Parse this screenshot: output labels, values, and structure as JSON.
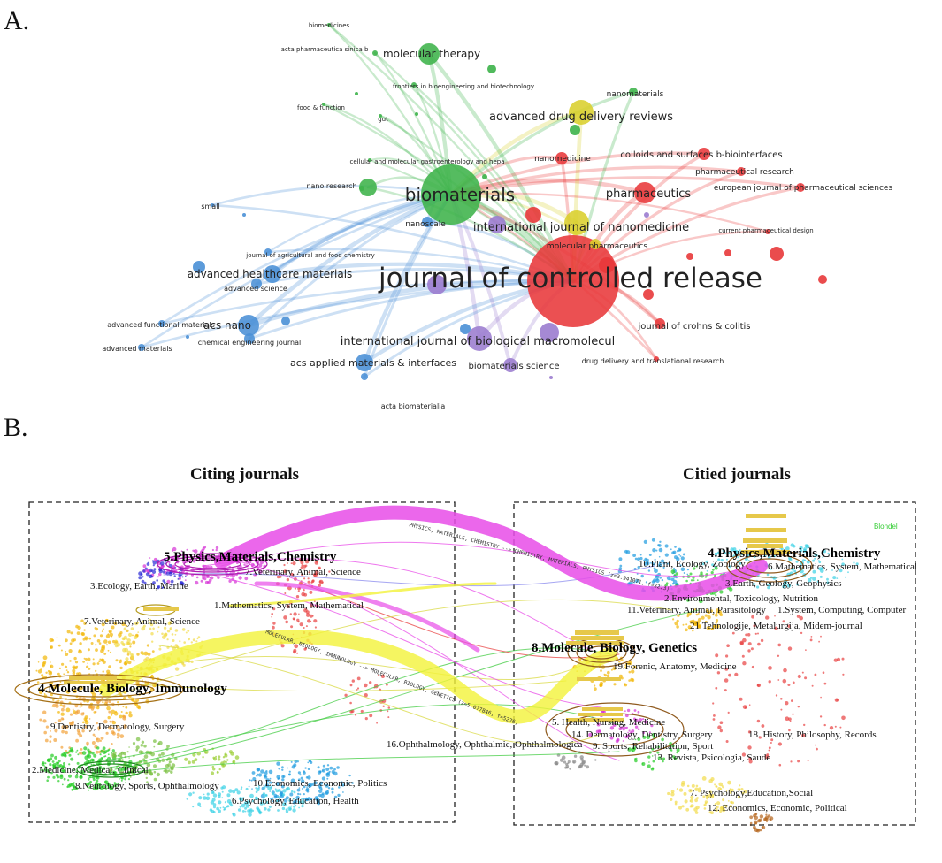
{
  "panel_a": {
    "letter": "A.",
    "nodes": [
      {
        "label": "journal of controlled release",
        "color": "red",
        "size": 38
      },
      {
        "label": "biomaterials",
        "color": "green",
        "size": 24
      },
      {
        "label": "international journal of nanomedicine",
        "color": "yellow",
        "size": 15
      },
      {
        "label": "pharmaceutics",
        "color": "red",
        "size": 14
      },
      {
        "label": "advanced drug delivery reviews",
        "color": "yellow",
        "size": 14
      },
      {
        "label": "molecular therapy",
        "color": "green",
        "size": 13
      },
      {
        "label": "acs nano",
        "color": "blue",
        "size": 14
      },
      {
        "label": "advanced healthcare materials",
        "color": "blue",
        "size": 13
      },
      {
        "label": "international journal of biological macromolecul",
        "color": "purple",
        "size": 14
      },
      {
        "label": "acs applied materials & interfaces",
        "color": "blue",
        "size": 13
      },
      {
        "label": "biomaterials science",
        "color": "purple",
        "size": 12
      },
      {
        "label": "journal of crohns & colitis",
        "color": "red",
        "size": 11
      },
      {
        "label": "colloids and surfaces b-biointerfaces",
        "color": "red",
        "size": 11
      },
      {
        "label": "pharmaceutical research",
        "color": "red",
        "size": 10
      },
      {
        "label": "european journal of pharmaceutical sciences",
        "color": "red",
        "size": 10
      },
      {
        "label": "nanomedicine",
        "color": "red",
        "size": 10
      },
      {
        "label": "nanomaterials",
        "color": "green",
        "size": 10
      },
      {
        "label": "molecular pharmaceutics",
        "color": "yellow",
        "size": 9
      },
      {
        "label": "nanoscale",
        "color": "blue",
        "size": 9
      },
      {
        "label": "nano research",
        "color": "green",
        "size": 8
      },
      {
        "label": "advanced science",
        "color": "blue",
        "size": 9
      },
      {
        "label": "chemical engineering journal",
        "color": "blue",
        "size": 9
      },
      {
        "label": "advanced functional materials",
        "color": "blue",
        "size": 8
      },
      {
        "label": "advanced materials",
        "color": "blue",
        "size": 8
      },
      {
        "label": "journal of agricultural and food chemistry",
        "color": "blue",
        "size": 7
      },
      {
        "label": "small",
        "color": "blue",
        "size": 8
      },
      {
        "label": "acta biomaterialia",
        "color": "blue",
        "size": 9
      },
      {
        "label": "drug delivery and translational research",
        "color": "red",
        "size": 8
      },
      {
        "label": "current pharmaceutical design",
        "color": "red",
        "size": 7
      },
      {
        "label": "cellular and molecular gastroenterology and hepa",
        "color": "green",
        "size": 6
      },
      {
        "label": "frontiers in bioengineering and biotechnology",
        "color": "green",
        "size": 7
      },
      {
        "label": "acta pharmaceutica sinica b",
        "color": "green",
        "size": 7
      },
      {
        "label": "biomedicines",
        "color": "green",
        "size": 7
      },
      {
        "label": "food & function",
        "color": "green",
        "size": 7
      },
      {
        "label": "gut",
        "color": "green",
        "size": 7
      }
    ]
  },
  "panel_b": {
    "letter": "B.",
    "left_title": "Citing journals",
    "right_title": "Citied journals",
    "blondel": "Blondel",
    "left_clusters": [
      {
        "label": "5.Physics,Materials,Chemistry",
        "big": true
      },
      {
        "label": "7.Veterinary, Animal, Science",
        "big": false
      },
      {
        "label": "3.Ecology, Earth, Marine",
        "big": false
      },
      {
        "label": "7.Veterinary, Animal, Science",
        "big": false
      },
      {
        "label": "1.Mathematics, System, Mathematical",
        "big": false
      },
      {
        "label": "4.Molecule, Biology, Immunology",
        "big": true
      },
      {
        "label": "9.Dentistry, Dermatology, Surgery",
        "big": false
      },
      {
        "label": "2.Medicine, Medical, Clinical",
        "big": false
      },
      {
        "label": "8.Neurology, Sports, Ophthalmology",
        "big": false
      },
      {
        "label": "10.Economics, Economic, Politics",
        "big": false
      },
      {
        "label": "6.Psychology, Education, Health",
        "big": false
      }
    ],
    "center_cluster": "16.Ophthalmology, Ophthalmic, Ophthalmologica",
    "right_clusters": [
      {
        "label": "4.Physics,Materials,Chemistry",
        "big": true
      },
      {
        "label": "10.Plant, Ecology, Zoology",
        "big": false
      },
      {
        "label": "6.Mathematics, System, Mathematical",
        "big": false
      },
      {
        "label": "3.Earth, Geology, Geophysics",
        "big": false
      },
      {
        "label": "2.Environmental, Toxicology, Nutrition",
        "big": false
      },
      {
        "label": "11.Veterinary, Animal, Parasitology",
        "big": false
      },
      {
        "label": "1.System, Computing, Computer",
        "big": false
      },
      {
        "label": "21.Tehnologije, Metalurgija, Midem-journal",
        "big": false
      },
      {
        "label": "8.Molecule, Biology, Genetics",
        "big": true
      },
      {
        "label": "19.Forenic, Anatomy, Medicine",
        "big": false
      },
      {
        "label": "5. Health, Nursing, Medicine",
        "big": false
      },
      {
        "label": "14. Dermatology, Dentistry, Surgery",
        "big": false
      },
      {
        "label": "9. Sports, Rehabilitation, Sport",
        "big": false
      },
      {
        "label": "13. Revista, Psicologia, Saude",
        "big": false
      },
      {
        "label": "18. History, Philosophy, Records",
        "big": false
      },
      {
        "label": "7. Psychology,Education,Social",
        "big": false
      },
      {
        "label": "12. Economics, Economic, Political",
        "big": false
      }
    ],
    "flows": [
      {
        "label": "PHYSICS, MATERIALS, CHEMISTRY --> CHEMISTRY, MATERIALS, PHYSICS (z=3.941071, f=3213)"
      },
      {
        "label": "MOLECULAR, BIOLOGY, IMMUNOLOGY --> MOLECULAR, BIOLOGY, GENETICS (z=5.077846, f=5276)"
      }
    ]
  }
}
